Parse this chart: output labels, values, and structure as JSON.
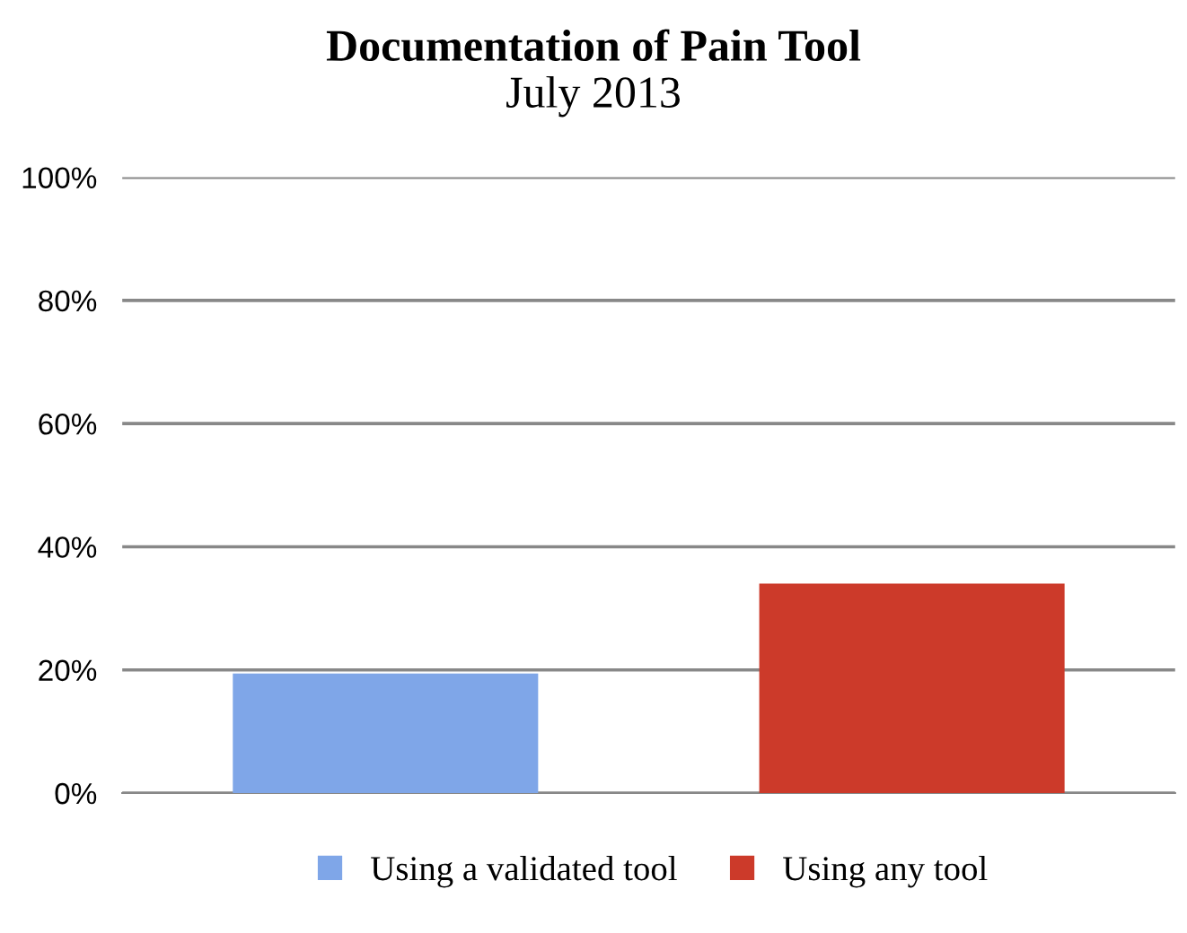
{
  "chart_data": {
    "type": "bar",
    "title": "Documentation of Pain Tool",
    "subtitle": "July 2013",
    "categories": [
      null,
      null
    ],
    "series": [
      {
        "name": "Using a validated tool",
        "color": "#7fa6e8",
        "values": [
          19.4,
          null
        ]
      },
      {
        "name": "Using any tool",
        "color": "#cc3a2a",
        "values": [
          null,
          34
        ]
      }
    ],
    "ylim": [
      0,
      100
    ],
    "yticks": [
      {
        "value": 0,
        "label": "0%"
      },
      {
        "value": 20,
        "label": "20%"
      },
      {
        "value": 40,
        "label": "40%"
      },
      {
        "value": 60,
        "label": "60%"
      },
      {
        "value": 80,
        "label": "80%"
      },
      {
        "value": 100,
        "label": "100%"
      }
    ],
    "grid": "y",
    "legend": "bottom"
  }
}
